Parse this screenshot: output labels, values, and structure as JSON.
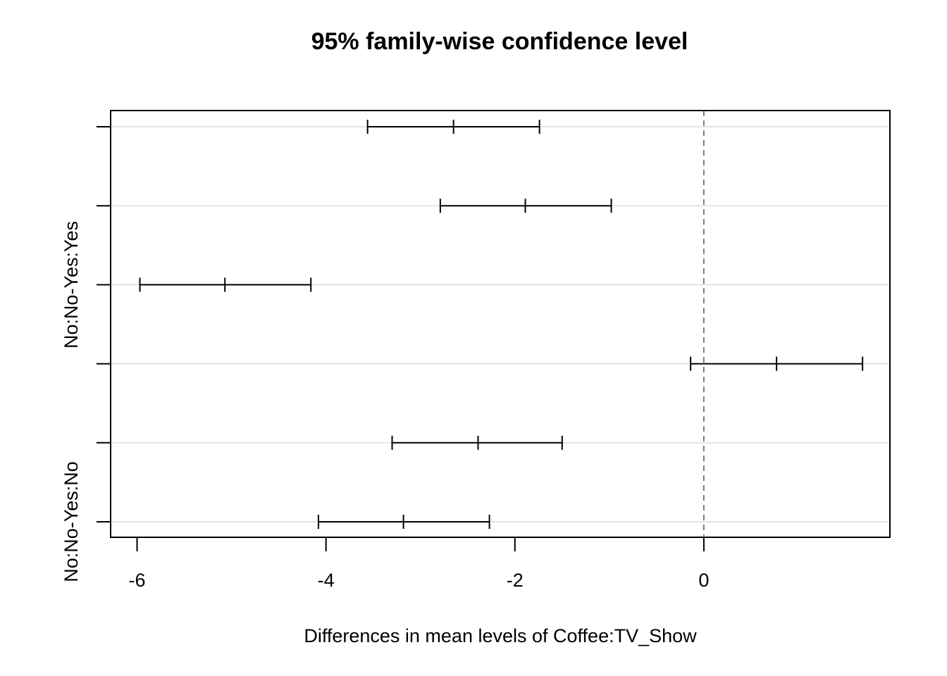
{
  "chart_data": {
    "type": "interval",
    "title": "95% family-wise confidence level",
    "xlabel": "Differences in mean levels of Coffee:TV_Show",
    "ylabel": "",
    "xlim": [
      -6.28,
      1.97
    ],
    "x_ticks": [
      -6,
      -4,
      -2,
      0
    ],
    "x_tick_labels": [
      "-6",
      "-4",
      "-2",
      "0"
    ],
    "y_tick_labels": [
      "No:No-Yes:No",
      "",
      "",
      "No:No-Yes:Yes",
      "",
      ""
    ],
    "reference_line_x": 0,
    "horizontal_grid": true,
    "comparisons": [
      {
        "label": "No:No-Yes:No",
        "lwr": -4.08,
        "diff": -3.18,
        "upr": -2.27
      },
      {
        "label": "",
        "lwr": -3.3,
        "diff": -2.39,
        "upr": -1.5
      },
      {
        "label": "",
        "lwr": -0.14,
        "diff": 0.77,
        "upr": 1.68
      },
      {
        "label": "No:No-Yes:Yes",
        "lwr": -5.97,
        "diff": -5.07,
        "upr": -4.16
      },
      {
        "label": "",
        "lwr": -2.79,
        "diff": -1.89,
        "upr": -0.98
      },
      {
        "label": "",
        "lwr": -3.56,
        "diff": -2.65,
        "upr": -1.74
      }
    ]
  }
}
